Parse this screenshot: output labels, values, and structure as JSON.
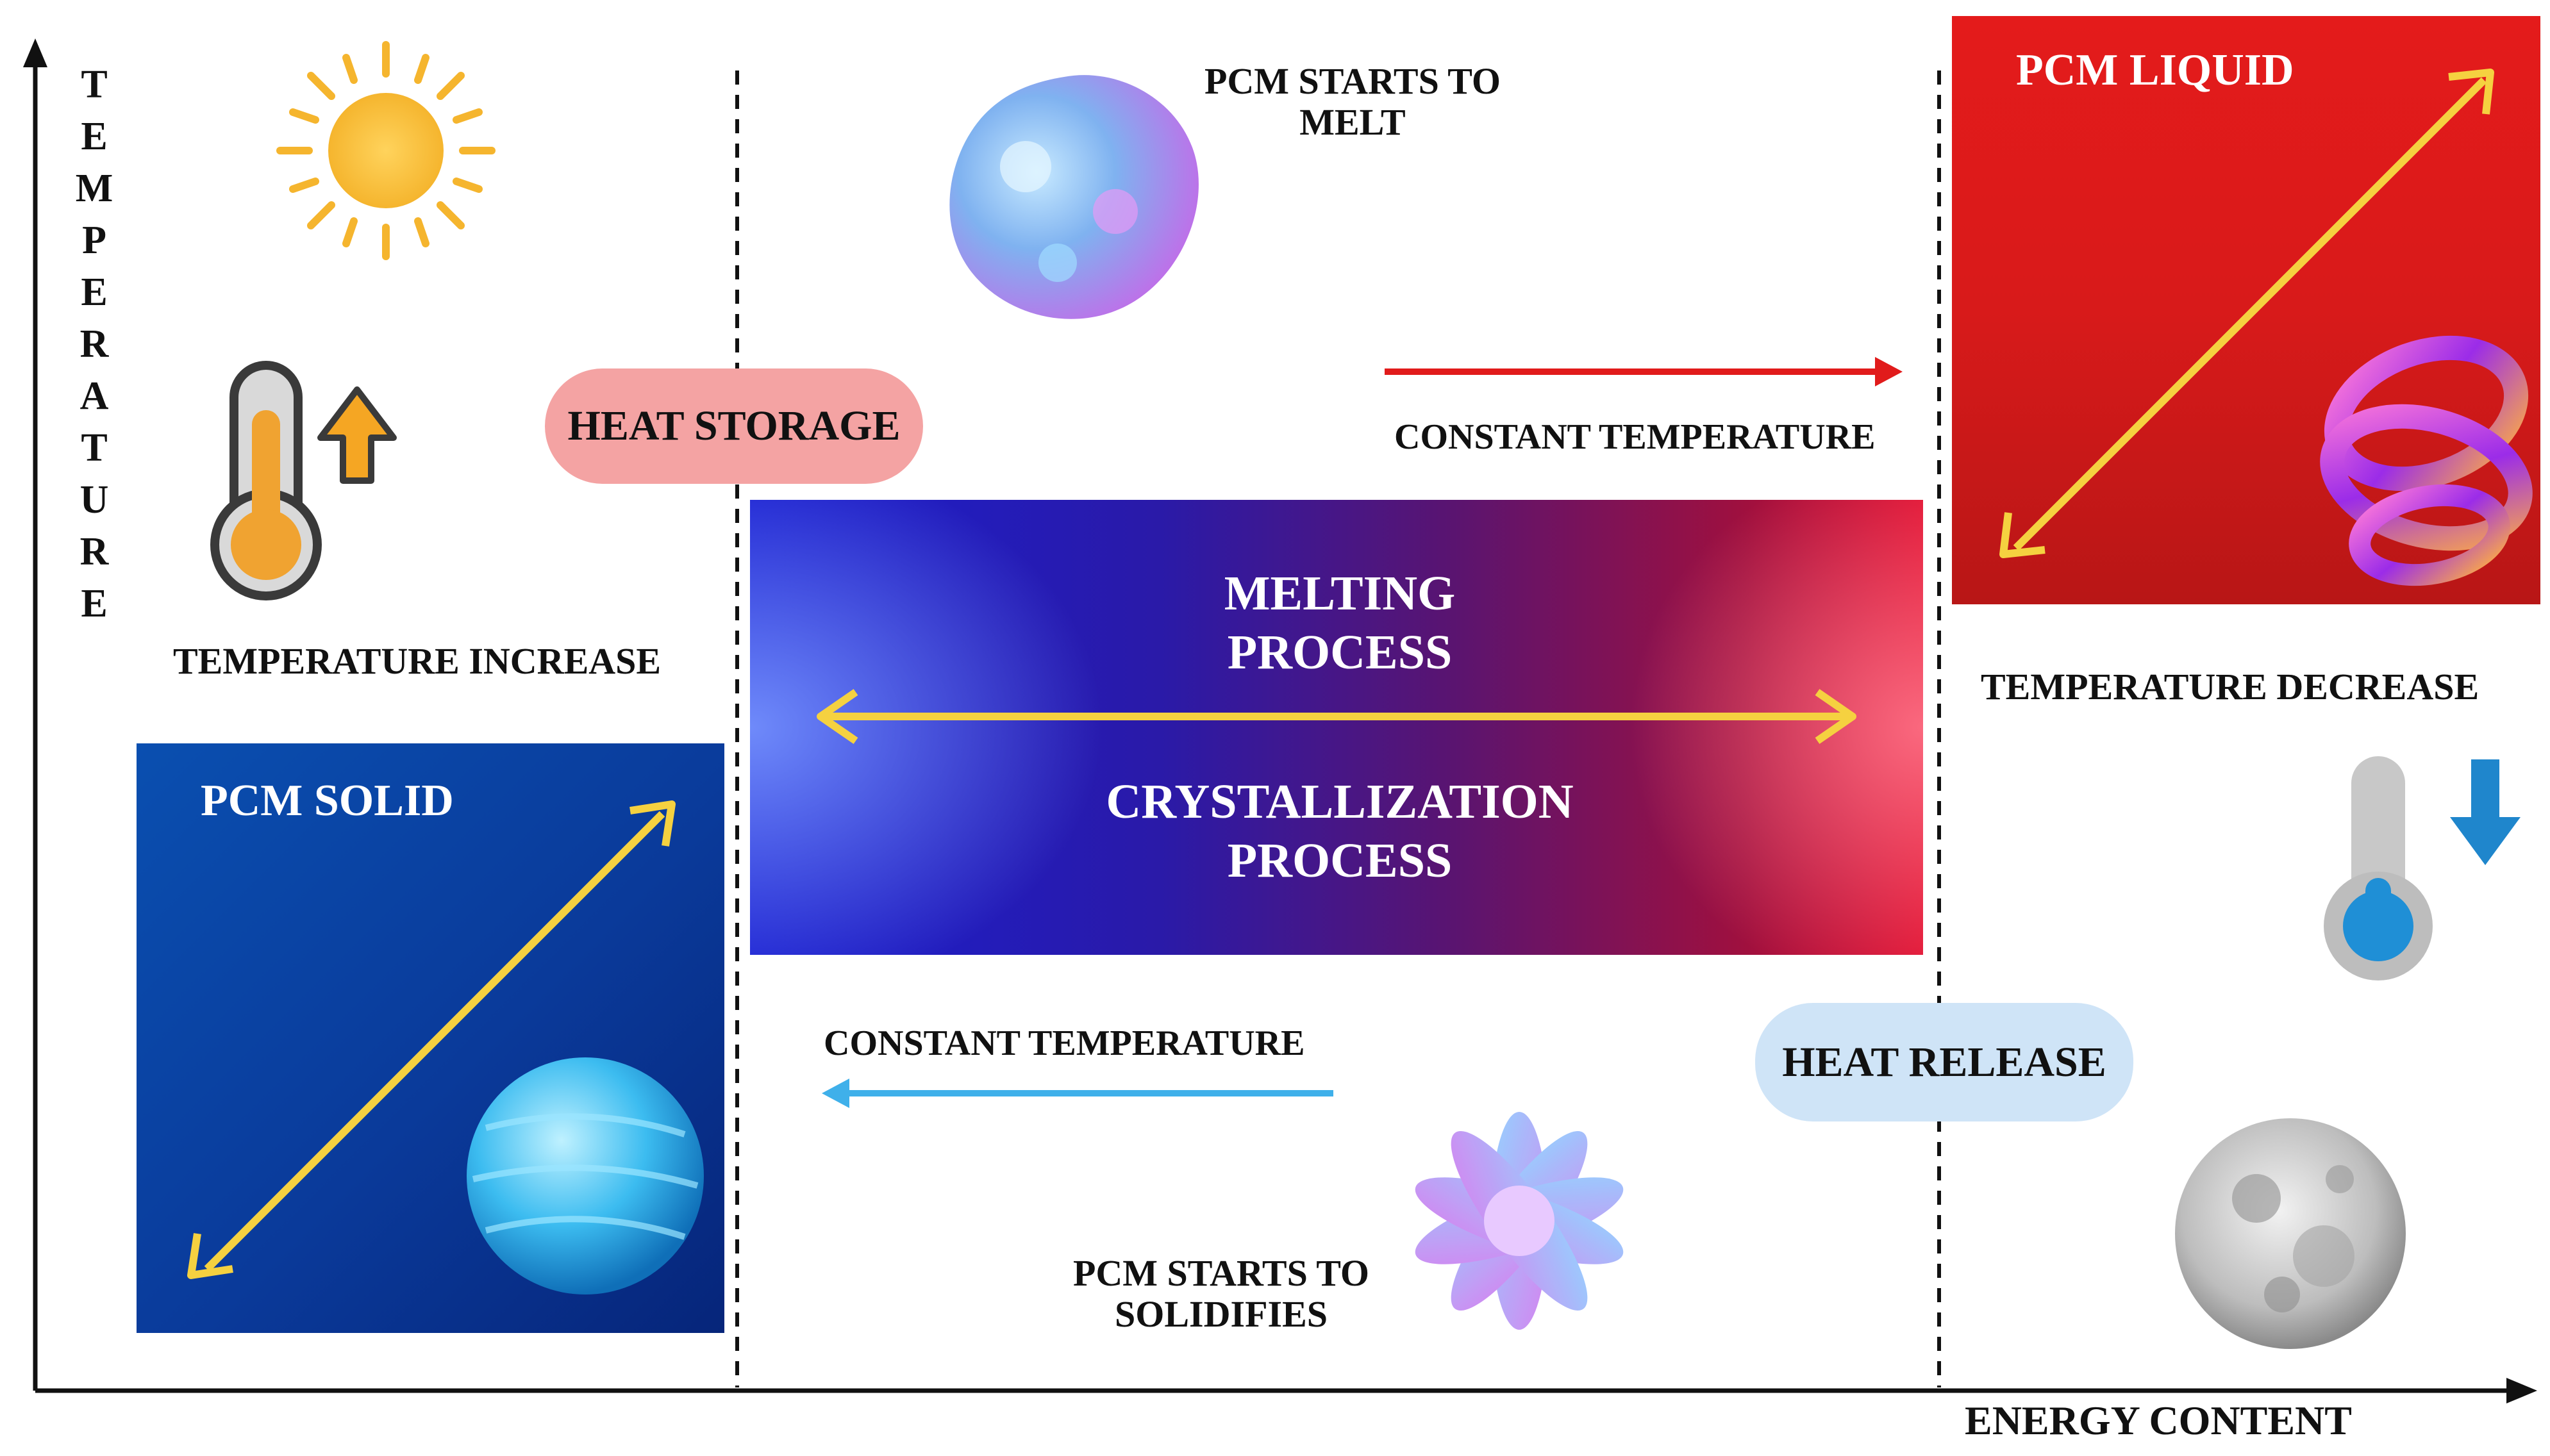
{
  "axes": {
    "y_label": "TEMPERATURE",
    "x_label": "ENERGY CONTENT"
  },
  "left_zone": {
    "temp_note": "TEMPERATURE INCREASE",
    "panel_title": "PCM SOLID",
    "panel_color": "#0a3a9a",
    "icons": [
      "sun-icon",
      "thermometer-hot-icon",
      "arrow-up-icon",
      "ice-sphere-icon"
    ]
  },
  "middle_zone": {
    "top_caption": "PCM STARTS TO\nMELT",
    "heat_storage": "HEAT STORAGE",
    "top_constant": "CONSTANT TEMPERATURE",
    "melting": "MELTING\nPROCESS",
    "crystallization": "CRYSTALLIZATION\nPROCESS",
    "bottom_constant": "CONSTANT TEMPERATURE",
    "bottom_caption": "PCM STARTS TO\nSOLIDIFIES",
    "gradient_from": "#1a1ed0",
    "gradient_to": "#e01030",
    "icons": [
      "melting-blob-icon",
      "crystal-flower-icon"
    ]
  },
  "right_zone": {
    "panel_title": "PCM LIQUID",
    "panel_color": "#e41b1b",
    "temp_note": "TEMPERATURE DECREASE",
    "heat_release": "HEAT RELEASE",
    "icons": [
      "liquid-swirl-icon",
      "thermometer-cold-icon",
      "arrow-down-icon",
      "moon-icon"
    ]
  },
  "colors": {
    "heat_storage_pill": "#f4a3a3",
    "heat_release_pill": "#cfe4f7",
    "double_arrow": "#f5d140",
    "red_arrow": "#e11b1b",
    "blue_arrow": "#3fb0ea"
  }
}
